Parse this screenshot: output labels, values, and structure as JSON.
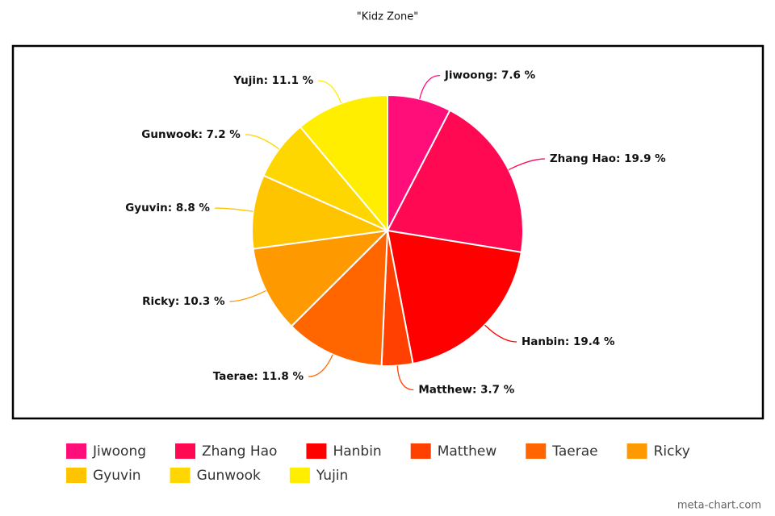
{
  "chart_data": {
    "type": "pie",
    "title": "\"Kidz Zone\"",
    "credit": "meta-chart.com",
    "categories": [
      "Jiwoong",
      "Zhang Hao",
      "Hanbin",
      "Matthew",
      "Taerae",
      "Ricky",
      "Gyuvin",
      "Gunwook",
      "Yujin"
    ],
    "values": [
      7.6,
      19.9,
      19.4,
      3.7,
      11.8,
      10.3,
      8.8,
      7.2,
      11.1
    ],
    "value_labels": [
      "Jiwoong: 7.6 %",
      "Zhang Hao: 19.9 %",
      "Hanbin: 19.4 %",
      "Matthew: 3.7 %",
      "Taerae: 11.8 %",
      "Ricky: 10.3 %",
      "Gyuvin: 8.8 %",
      "Gunwook: 7.2 %",
      "Yujin: 11.1 %"
    ],
    "colors": [
      "#ff0d79",
      "#ff0a52",
      "#ff0000",
      "#ff4000",
      "#ff6600",
      "#ff9900",
      "#ffc400",
      "#ffd700",
      "#ffee00"
    ],
    "legend": "bottom"
  }
}
